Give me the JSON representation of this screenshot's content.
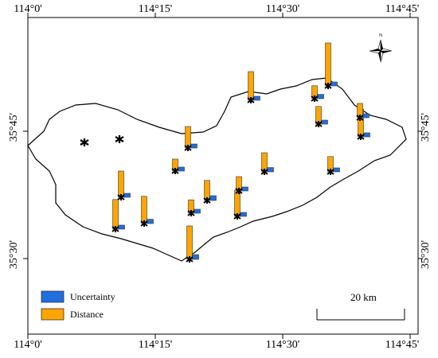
{
  "coordinates": {
    "top": [
      "114°0'",
      "114°15'",
      "114°30'",
      "114°45'"
    ],
    "bottom": [
      "114°0'",
      "114°15'",
      "114°30'",
      "114°45'"
    ],
    "left": [
      "35°45'",
      "35°30'"
    ],
    "right": [
      "35°45'",
      "35°30'"
    ]
  },
  "north_arrow_label": "N",
  "legend": {
    "uncertainty": "Uncertainty",
    "distance": "Distance"
  },
  "scale_bar_label": "20 km",
  "colors": {
    "distance": "#FFA500",
    "uncertainty": "#1E6FE0",
    "border": "#000000"
  },
  "sites": [
    {
      "distance": 0.62,
      "uncertainty": 0.08
    },
    {
      "distance": 0.55,
      "uncertainty": 0.08
    },
    {
      "distance": 0.57,
      "uncertainty": 0.09
    },
    {
      "distance": 0.25,
      "uncertainty": 0.07
    },
    {
      "distance": 0.7,
      "uncertainty": 0.1
    },
    {
      "distance": 0.45,
      "uncertainty": 0.08
    },
    {
      "distance": 0.6,
      "uncertainty": 0.07
    },
    {
      "distance": 0.28,
      "uncertainty": 0.08
    },
    {
      "distance": 0.42,
      "uncertainty": 0.1
    },
    {
      "distance": 0.55,
      "uncertainty": 0.08
    },
    {
      "distance": 0.4,
      "uncertainty": 0.09
    },
    {
      "distance": 0.37,
      "uncertainty": 0.07
    },
    {
      "distance": 0.27,
      "uncertainty": 0.09
    },
    {
      "distance": 0.32,
      "uncertainty": 0.08
    },
    {
      "distance": 0.9,
      "uncertainty": 0.08
    },
    {
      "distance": 0.58,
      "uncertainty": 0.06
    },
    {
      "distance": 0.3,
      "uncertainty": 0.08
    },
    {
      "distance": 0.3,
      "uncertainty": 0.08
    }
  ]
}
